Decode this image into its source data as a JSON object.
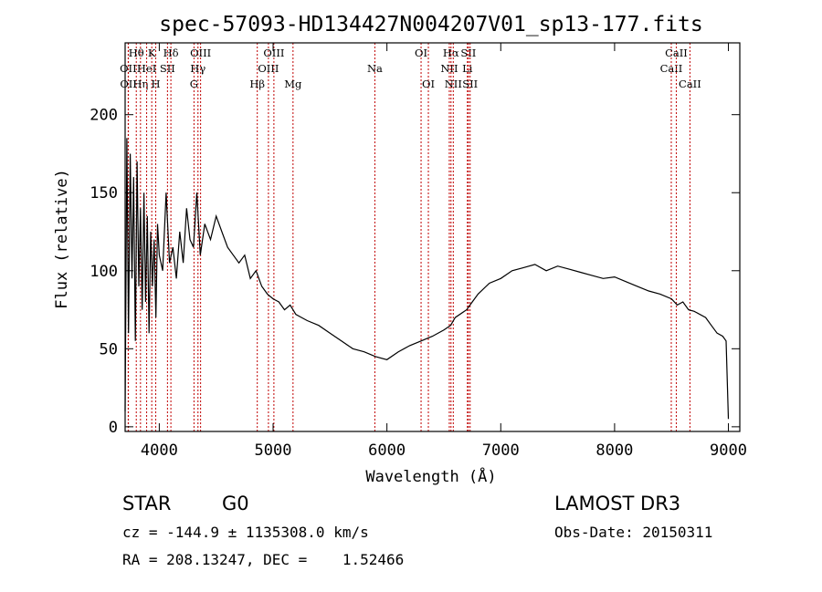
{
  "chart_data": {
    "type": "line",
    "title": "spec-57093-HD134427N004207V01_sp13-177.fits",
    "xlabel": "Wavelength (Å)",
    "ylabel": "Flux (relative)",
    "xlim": [
      3700,
      9100
    ],
    "ylim": [
      -3,
      246
    ],
    "x_ticks": [
      4000,
      5000,
      6000,
      7000,
      8000,
      9000
    ],
    "y_ticks": [
      0,
      50,
      100,
      150,
      200
    ],
    "grid": false,
    "series": [
      {
        "line_color": "#000000",
        "x": [
          3700,
          3715,
          3730,
          3745,
          3760,
          3775,
          3790,
          3805,
          3820,
          3835,
          3850,
          3865,
          3880,
          3895,
          3910,
          3925,
          3940,
          3955,
          3970,
          3985,
          4000,
          4030,
          4060,
          4090,
          4120,
          4150,
          4180,
          4210,
          4240,
          4270,
          4300,
          4330,
          4360,
          4400,
          4450,
          4500,
          4550,
          4600,
          4650,
          4700,
          4750,
          4800,
          4850,
          4900,
          4950,
          5000,
          5050,
          5100,
          5150,
          5200,
          5250,
          5300,
          5400,
          5500,
          5600,
          5700,
          5800,
          5900,
          6000,
          6100,
          6200,
          6300,
          6400,
          6500,
          6560,
          6600,
          6700,
          6750,
          6800,
          6900,
          7000,
          7100,
          7200,
          7300,
          7400,
          7500,
          7600,
          7700,
          7800,
          7900,
          8000,
          8100,
          8200,
          8300,
          8400,
          8500,
          8550,
          8600,
          8650,
          8700,
          8800,
          8850,
          8900,
          8950,
          8980,
          9000
        ],
        "y": [
          10,
          185,
          60,
          175,
          95,
          160,
          55,
          170,
          90,
          140,
          75,
          150,
          80,
          135,
          60,
          125,
          90,
          120,
          70,
          130,
          110,
          100,
          150,
          105,
          115,
          95,
          125,
          105,
          140,
          120,
          115,
          150,
          110,
          130,
          120,
          135,
          125,
          115,
          110,
          105,
          110,
          95,
          100,
          90,
          85,
          82,
          80,
          75,
          78,
          72,
          70,
          68,
          65,
          60,
          55,
          50,
          48,
          45,
          43,
          48,
          52,
          55,
          58,
          62,
          65,
          70,
          75,
          80,
          85,
          92,
          95,
          100,
          102,
          104,
          100,
          103,
          101,
          99,
          97,
          95,
          96,
          93,
          90,
          87,
          85,
          82,
          78,
          80,
          75,
          74,
          70,
          65,
          60,
          58,
          55,
          5
        ]
      }
    ],
    "line_markers": [
      {
        "label": "OII",
        "x": 3727,
        "row": 2
      },
      {
        "label": "OII",
        "x": 3729,
        "row": 3
      },
      {
        "label": "Hθ",
        "x": 3798,
        "row": 1
      },
      {
        "label": "Hη",
        "x": 3835,
        "row": 3
      },
      {
        "label": "HeI",
        "x": 3889,
        "row": 2
      },
      {
        "label": "K",
        "x": 3934,
        "row": 1
      },
      {
        "label": "H",
        "x": 3969,
        "row": 3
      },
      {
        "label": "SII",
        "x": 4072,
        "row": 2
      },
      {
        "label": "Hδ",
        "x": 4102,
        "row": 1
      },
      {
        "label": "G",
        "x": 4305,
        "row": 3
      },
      {
        "label": "Hγ",
        "x": 4340,
        "row": 2
      },
      {
        "label": "OIII",
        "x": 4363,
        "row": 1
      },
      {
        "label": "Hβ",
        "x": 4861,
        "row": 3
      },
      {
        "label": "OIII",
        "x": 4959,
        "row": 2
      },
      {
        "label": "OIII",
        "x": 5007,
        "row": 1
      },
      {
        "label": "Mg",
        "x": 5175,
        "row": 3
      },
      {
        "label": "Na",
        "x": 5894,
        "row": 2
      },
      {
        "label": "OI",
        "x": 6300,
        "row": 1
      },
      {
        "label": "OI",
        "x": 6364,
        "row": 3
      },
      {
        "label": "NII",
        "x": 6548,
        "row": 2
      },
      {
        "label": "Hα",
        "x": 6563,
        "row": 1
      },
      {
        "label": "NII",
        "x": 6583,
        "row": 3
      },
      {
        "label": "Li",
        "x": 6707,
        "row": 2
      },
      {
        "label": "SII",
        "x": 6716,
        "row": 1
      },
      {
        "label": "SII",
        "x": 6731,
        "row": 3
      },
      {
        "label": "CaII",
        "x": 8498,
        "row": 2
      },
      {
        "label": "CaII",
        "x": 8542,
        "row": 1
      },
      {
        "label": "CaII",
        "x": 8662,
        "row": 3
      }
    ],
    "marker_color": "#c00000"
  },
  "info": {
    "class": "STAR",
    "subclass": "G0",
    "survey": "LAMOST DR3",
    "cz": "cz = -144.9 ± 1135308.0 km/s",
    "obs_date": "Obs-Date: 20150311",
    "radec": "RA = 208.13247, DEC =    1.52466"
  }
}
